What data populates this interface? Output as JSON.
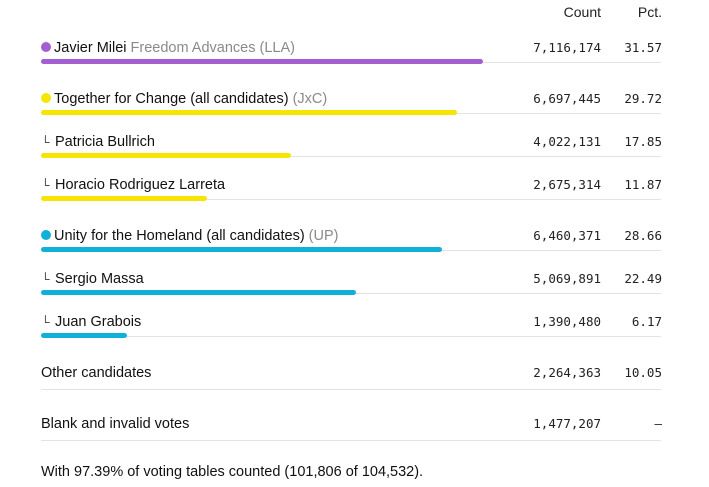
{
  "chart_data": {
    "type": "bar",
    "headers": {
      "count": "Count",
      "pct": "Pct."
    },
    "rows": [
      {
        "label": "Javier Milei",
        "party": "Freedom Advances (LLA)",
        "count": "7,116,174",
        "pct": "31.57",
        "value": 31.57,
        "color": "#a35fd1",
        "marker": "dot"
      },
      {
        "label": "Together for Change (all candidates)",
        "party": "(JxC)",
        "count": "6,697,445",
        "pct": "29.72",
        "value": 29.72,
        "color": "#f5e500",
        "marker": "dot"
      },
      {
        "label": "Patricia Bullrich",
        "party": "",
        "count": "4,022,131",
        "pct": "17.85",
        "value": 17.85,
        "color": "#f5e500",
        "marker": "corner"
      },
      {
        "label": "Horacio Rodriguez Larreta",
        "party": "",
        "count": "2,675,314",
        "pct": "11.87",
        "value": 11.87,
        "color": "#f5e500",
        "marker": "corner"
      },
      {
        "label": "Unity for the Homeland (all candidates)",
        "party": "(UP)",
        "count": "6,460,371",
        "pct": "28.66",
        "value": 28.66,
        "color": "#10b0d8",
        "marker": "dot"
      },
      {
        "label": "Sergio Massa",
        "party": "",
        "count": "5,069,891",
        "pct": "22.49",
        "value": 22.49,
        "color": "#10b0d8",
        "marker": "corner"
      },
      {
        "label": "Juan Grabois",
        "party": "",
        "count": "1,390,480",
        "pct": "6.17",
        "value": 6.17,
        "color": "#10b0d8",
        "marker": "corner"
      },
      {
        "label": "Other candidates",
        "party": "",
        "count": "2,264,363",
        "pct": "10.05",
        "value": null,
        "color": "",
        "marker": "none"
      },
      {
        "label": "Blank and invalid votes",
        "party": "",
        "count": "1,477,207",
        "pct": "–",
        "value": null,
        "color": "",
        "marker": "none"
      }
    ],
    "footnote": "With 97.39% of voting tables counted (101,806 of 104,532)."
  }
}
